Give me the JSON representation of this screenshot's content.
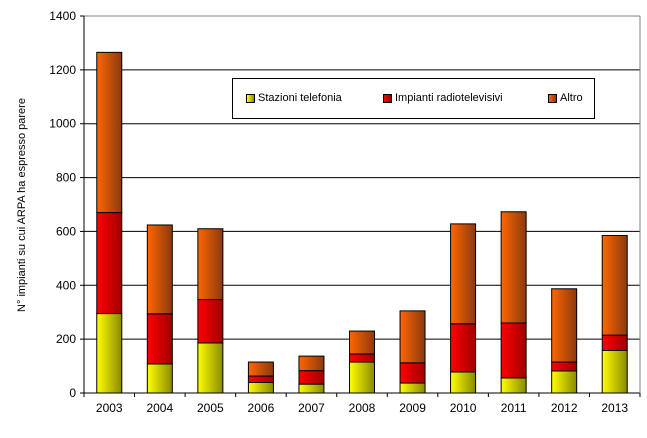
{
  "chart_data": {
    "type": "bar",
    "stacked": true,
    "title": "",
    "xlabel": "",
    "ylabel": "N° impianti su cui ARPA ha espresso parere",
    "ylim": [
      0,
      1400
    ],
    "yticks": [
      0,
      200,
      400,
      600,
      800,
      1000,
      1200,
      1400
    ],
    "grid": true,
    "legend_position": "top-inside",
    "categories": [
      "2003",
      "2004",
      "2005",
      "2006",
      "2007",
      "2008",
      "2009",
      "2010",
      "2011",
      "2012",
      "2013"
    ],
    "series": [
      {
        "name": "Stazioni telefonia",
        "color": "#e6e600",
        "values": [
          295,
          108,
          186,
          39,
          33,
          115,
          37,
          78,
          56,
          82,
          158
        ]
      },
      {
        "name": "Impianti radiotelevisivi",
        "color": "#e00000",
        "values": [
          375,
          186,
          161,
          24,
          50,
          30,
          75,
          179,
          204,
          33,
          57
        ]
      },
      {
        "name": "Altro",
        "color": "#e06000",
        "values": [
          595,
          330,
          263,
          52,
          54,
          85,
          193,
          371,
          413,
          272,
          370
        ]
      }
    ]
  },
  "legend": {
    "items": [
      {
        "label": "Stazioni telefonia",
        "color": "#e6e600"
      },
      {
        "label": "Impianti radiotelevisivi",
        "color": "#e00000"
      },
      {
        "label": "Altro",
        "color": "#e06000"
      }
    ]
  }
}
